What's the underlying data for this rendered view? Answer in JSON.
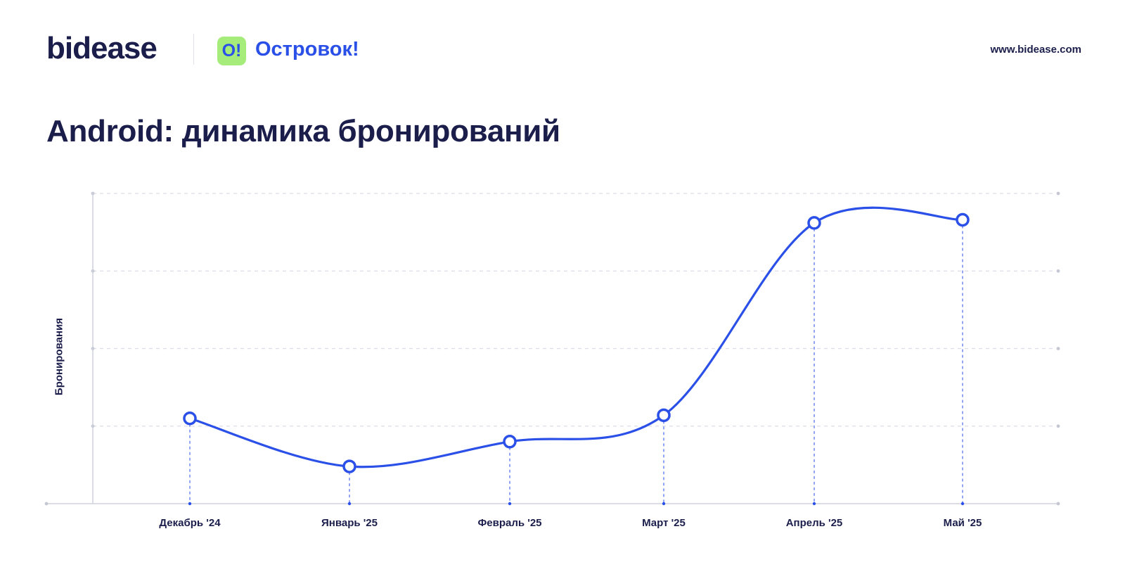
{
  "header": {
    "brand": "bidease",
    "partner_badge": "O!",
    "partner_name": "Островок!",
    "site": "www.bidease.com"
  },
  "chart_data": {
    "type": "line",
    "title": "Android: динамика бронирований",
    "ylabel": "Бронирования",
    "xlabel": "",
    "categories": [
      "Декабрь '24",
      "Январь '25",
      "Февраль '25",
      "Март '25",
      "Апрель '25",
      "Май '25"
    ],
    "values": [
      27.5,
      12,
      20,
      28.5,
      90.5,
      91.5
    ],
    "ylim": [
      0,
      100
    ],
    "y_gridlines": [
      25,
      50,
      75,
      100
    ],
    "y_tick_labels_shown": false,
    "grid": true,
    "series_color": "#2b50e8",
    "smooth": true
  }
}
